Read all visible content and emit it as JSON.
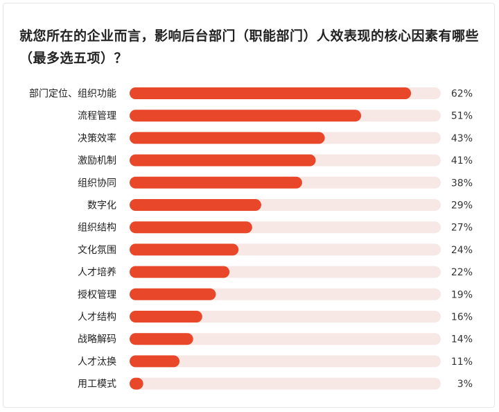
{
  "title": "就您所在的企业而言，影响后台部门（职能部门）人效表现的核心因素有哪些（最多选五项）？",
  "chart_data": {
    "type": "bar",
    "orientation": "horizontal",
    "title": "就您所在的企业而言，影响后台部门（职能部门）人效表现的核心因素有哪些（最多选五项）？",
    "categories": [
      "部门定位、组织功能",
      "流程管理",
      "决策效率",
      "激励机制",
      "组织协同",
      "数字化",
      "组织结构",
      "文化氛围",
      "人才培养",
      "授权管理",
      "人才结构",
      "战略解码",
      "人才汰换",
      "用工模式"
    ],
    "values": [
      62,
      51,
      43,
      41,
      38,
      29,
      27,
      24,
      22,
      19,
      16,
      14,
      11,
      3
    ],
    "value_labels": [
      "62%",
      "51%",
      "43%",
      "41%",
      "38%",
      "29%",
      "27%",
      "24%",
      "22%",
      "19%",
      "16%",
      "14%",
      "11%",
      "3%"
    ],
    "unit": "%",
    "xlim": [
      0,
      100
    ],
    "bar_color": "#e8472a",
    "track_color": "#f7e8e6",
    "grid": false,
    "legend": "none"
  }
}
